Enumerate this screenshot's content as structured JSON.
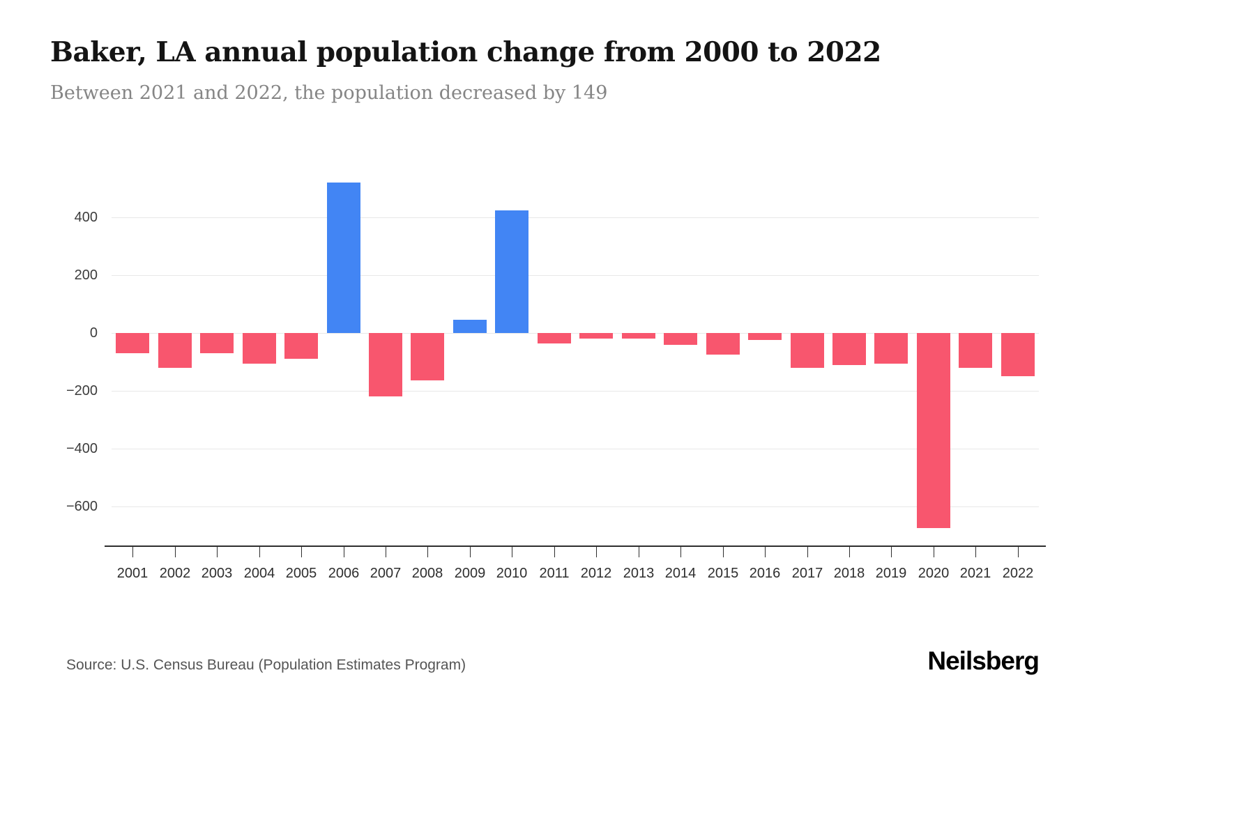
{
  "header": {
    "title": "Baker, LA annual population change from 2000 to 2022",
    "subtitle": "Between 2021 and 2022, the population decreased by 149"
  },
  "footer": {
    "source": "Source: U.S. Census Bureau (Population Estimates Program)",
    "brand": "Neilsberg"
  },
  "chart_data": {
    "type": "bar",
    "title": "Baker, LA annual population change from 2000 to 2022",
    "subtitle": "Between 2021 and 2022, the population decreased by 149",
    "categories": [
      "2001",
      "2002",
      "2003",
      "2004",
      "2005",
      "2006",
      "2007",
      "2008",
      "2009",
      "2010",
      "2011",
      "2012",
      "2013",
      "2014",
      "2015",
      "2016",
      "2017",
      "2018",
      "2019",
      "2020",
      "2021",
      "2022"
    ],
    "values": [
      -70,
      -120,
      -70,
      -105,
      -90,
      520,
      -220,
      -165,
      45,
      425,
      -35,
      -20,
      -20,
      -40,
      -75,
      -25,
      -120,
      -110,
      -105,
      -675,
      -120,
      -149
    ],
    "xlabel": "",
    "ylabel": "",
    "yticks": [
      400,
      200,
      0,
      -200,
      -400,
      -600
    ],
    "ylim": [
      -735,
      595
    ],
    "grid": true,
    "legend": "none",
    "colors": {
      "positive": "#4285f4",
      "negative": "#f8566e"
    }
  }
}
